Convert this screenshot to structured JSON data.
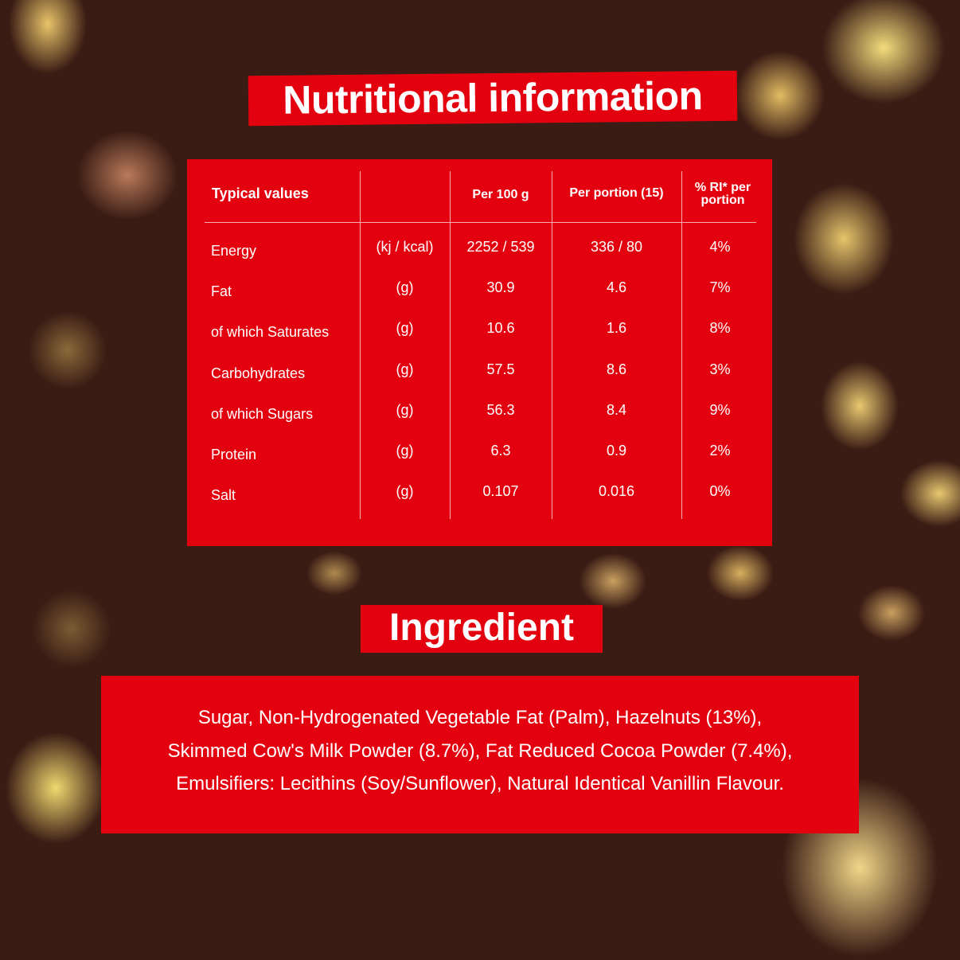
{
  "nutrition": {
    "title": "Nutritional information",
    "headers": [
      "Typical values",
      "",
      "Per 100 g",
      "Per portion (15)",
      "% RI* per portion"
    ],
    "rows": [
      {
        "name": "Energy",
        "unit": "(kj / kcal)",
        "per100": "2252 / 539",
        "portion": "336 / 80",
        "ri": "4%"
      },
      {
        "name": "Fat",
        "unit": "(g)",
        "per100": "30.9",
        "portion": "4.6",
        "ri": "7%"
      },
      {
        "name": "of which Saturates",
        "unit": "(g)",
        "per100": "10.6",
        "portion": "1.6",
        "ri": "8%"
      },
      {
        "name": "Carbohydrates",
        "unit": "(g)",
        "per100": "57.5",
        "portion": "8.6",
        "ri": "3%"
      },
      {
        "name": "of which Sugars",
        "unit": "(g)",
        "per100": "56.3",
        "portion": "8.4",
        "ri": "9%"
      },
      {
        "name": "Protein",
        "unit": "(g)",
        "per100": "6.3",
        "portion": "0.9",
        "ri": "2%"
      },
      {
        "name": "Salt",
        "unit": "(g)",
        "per100": "0.107",
        "portion": "0.016",
        "ri": "0%"
      }
    ]
  },
  "ingredients": {
    "title": "Ingredient",
    "lines": [
      "Sugar, Non-Hydrogenated Vegetable Fat (Palm), Hazelnuts (13%),",
      "Skimmed Cow's Milk Powder (8.7%), Fat Reduced Cocoa Powder (7.4%),",
      "Emulsifiers: Lecithins (Soy/Sunflower), Natural Identical Vanillin Flavour."
    ]
  },
  "colors": {
    "accent": "#e3000f",
    "background": "#3a1c14"
  }
}
